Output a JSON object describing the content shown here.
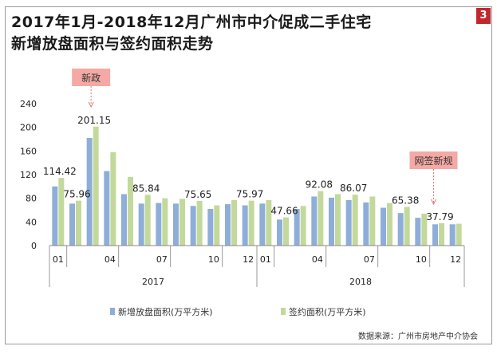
{
  "page_number": "3",
  "source": "数据来源：广州市房地产中介协会",
  "chart_data": {
    "type": "bar",
    "title": "2017年1月-2018年12月广州市中介促成二手住宅新增放盘面积与签约面积走势",
    "title_lines": [
      "2017年1月-2018年12月广州市中介促成二手住宅",
      "新增放盘面积与签约面积走势"
    ],
    "ylim": [
      0,
      240
    ],
    "yticks": [
      "0",
      "40",
      "80",
      "120",
      "160",
      "200",
      "240"
    ],
    "month_ticks": [
      {
        "index": 0,
        "label": "01"
      },
      {
        "index": 3,
        "label": "04"
      },
      {
        "index": 6,
        "label": "07"
      },
      {
        "index": 9,
        "label": "10"
      },
      {
        "index": 11,
        "label": "12"
      },
      {
        "index": 12,
        "label": "01"
      },
      {
        "index": 15,
        "label": "04"
      },
      {
        "index": 18,
        "label": "07"
      },
      {
        "index": 21,
        "label": "10"
      },
      {
        "index": 23,
        "label": "12"
      }
    ],
    "years": [
      "2017",
      "2018"
    ],
    "legend_position": "bottom",
    "series": [
      {
        "name": "新增放盘面积(万平方米)",
        "color": "#8eaed9",
        "values": [
          100,
          71,
          182,
          126,
          87,
          71,
          72,
          71,
          67,
          62,
          70,
          68,
          71,
          44,
          62,
          83,
          81,
          77,
          73,
          64,
          55,
          47,
          36,
          36
        ]
      },
      {
        "name": "签约面积(万平方米)",
        "color": "#c3d99b",
        "values": [
          114.42,
          75.96,
          201.15,
          158,
          116,
          85.84,
          80,
          79,
          75.65,
          68,
          77,
          75.97,
          77,
          47.66,
          67,
          92.08,
          87,
          86.07,
          83,
          72,
          65.38,
          54,
          37.79,
          37
        ]
      }
    ],
    "data_labels": [
      {
        "index": 0,
        "text": "114.42"
      },
      {
        "index": 1,
        "text": "75.96"
      },
      {
        "index": 2,
        "text": "201.15"
      },
      {
        "index": 5,
        "text": "85.84"
      },
      {
        "index": 8,
        "text": "75.65"
      },
      {
        "index": 11,
        "text": "75.97"
      },
      {
        "index": 13,
        "text": "47.66"
      },
      {
        "index": 15,
        "text": "92.08"
      },
      {
        "index": 17,
        "text": "86.07"
      },
      {
        "index": 20,
        "text": "65.38"
      },
      {
        "index": 22,
        "text": "37.79"
      }
    ],
    "annotations": [
      {
        "text": "新政",
        "index": 2,
        "color": "#f4a9a5"
      },
      {
        "text": "网签新规",
        "index": 22,
        "color": "#f4a9a5"
      }
    ]
  }
}
